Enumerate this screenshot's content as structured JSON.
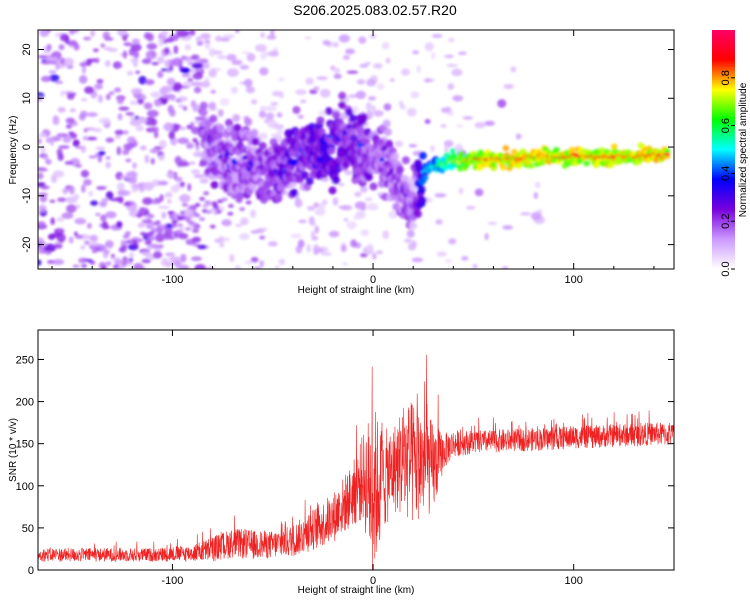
{
  "title": "S206.2025.083.02.57.R20",
  "chart_data": [
    {
      "type": "heatmap",
      "xlabel": "Height of straight line (km)",
      "ylabel": "Frequency (Hz)",
      "xlim": [
        -167,
        150
      ],
      "ylim": [
        -25,
        24
      ],
      "x_ticks": [
        -100,
        0,
        100
      ],
      "y_ticks": [
        -20,
        -10,
        0,
        10,
        20
      ],
      "colorbar": {
        "label": "Normalized spectral amplitude",
        "range": [
          0,
          1
        ],
        "ticks": [
          "0.0",
          "0.2",
          "0.4",
          "0.6",
          "0.8"
        ],
        "tick_values": [
          0,
          0.2,
          0.4,
          0.6,
          0.8
        ],
        "colormap": [
          "#ffffff",
          "#cc99ff",
          "#7700dd",
          "#0000ff",
          "#00ffff",
          "#00ff00",
          "#ffff00",
          "#ff0000",
          "#ff0066"
        ]
      },
      "ridge": {
        "x": [
          -85,
          -75,
          -65,
          -55,
          -45,
          -35,
          -25,
          -15,
          -8,
          0,
          5,
          10,
          15,
          20,
          25,
          30,
          40,
          50,
          60,
          70,
          80,
          90,
          100,
          110,
          120,
          130,
          140,
          147
        ],
        "y": [
          2,
          -3,
          -2,
          -5,
          -4,
          -1,
          0,
          1,
          0,
          -3,
          -1,
          -6,
          -9,
          -13,
          -5,
          -4,
          -3,
          -2.5,
          -2.5,
          -2.5,
          -2,
          -2,
          -2,
          -2,
          -2,
          -2,
          -1.5,
          -1.5
        ],
        "amplitude": [
          0.3,
          0.3,
          0.3,
          0.3,
          0.35,
          0.35,
          0.4,
          0.35,
          0.35,
          0.3,
          0.3,
          0.3,
          0.3,
          0.25,
          0.5,
          0.55,
          0.7,
          0.8,
          0.85,
          0.85,
          0.85,
          0.85,
          0.85,
          0.85,
          0.85,
          0.85,
          0.85,
          0.85
        ]
      }
    },
    {
      "type": "line",
      "xlabel": "Height of straight line (km)",
      "ylabel": "SNR (10 * v/v)",
      "xlim": [
        -167,
        150
      ],
      "ylim": [
        0,
        285
      ],
      "x_ticks": [
        -100,
        0,
        100
      ],
      "y_ticks": [
        0,
        50,
        100,
        150,
        200,
        250
      ],
      "color": "#ee2222",
      "series": [
        {
          "x": [
            -167,
            -150,
            -130,
            -110,
            -90,
            -80,
            -70,
            -60,
            -50,
            -40,
            -30,
            -20,
            -10,
            -5,
            0,
            5,
            10,
            15,
            20,
            25,
            30,
            35,
            40,
            50,
            60,
            70,
            80,
            90,
            100,
            110,
            120,
            130,
            140,
            150
          ],
          "mean": [
            18,
            18,
            18,
            18,
            20,
            25,
            32,
            30,
            30,
            35,
            48,
            62,
            90,
            110,
            95,
            105,
            120,
            130,
            125,
            130,
            120,
            140,
            150,
            152,
            153,
            154,
            155,
            156,
            158,
            158,
            160,
            160,
            162,
            160
          ],
          "spread": [
            15,
            15,
            15,
            15,
            18,
            28,
            32,
            32,
            30,
            35,
            45,
            55,
            70,
            95,
            190,
            110,
            95,
            120,
            140,
            120,
            100,
            40,
            30,
            25,
            25,
            25,
            25,
            25,
            25,
            25,
            25,
            25,
            25,
            25
          ]
        }
      ]
    }
  ]
}
